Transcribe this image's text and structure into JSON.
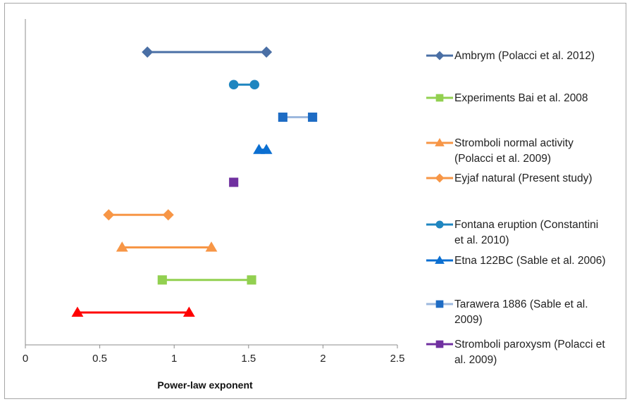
{
  "chart_data": {
    "type": "range",
    "xlabel": "Power-law exponent",
    "ylabel": "",
    "xlim": [
      0,
      2.5
    ],
    "x_ticks": [
      "0",
      "0.5",
      "1",
      "1.5",
      "2",
      "2.5"
    ],
    "grid": false,
    "legend_position": "right",
    "series": [
      {
        "name": "Ambrym (Polacci et al. 2012)",
        "legend_lines": [
          "Ambrym (Polacci et al. 2012)"
        ],
        "marker": "diamond",
        "color": "#4a6fa5",
        "range": [
          0.82,
          1.62
        ]
      },
      {
        "name": "Fontana eruption (Constantini et al. 2010)",
        "legend_lines": [
          "Fontana eruption (Constantini",
          "et al. 2010)"
        ],
        "marker": "circle",
        "color": "#1f86c0",
        "range": [
          1.4,
          1.54
        ]
      },
      {
        "name": "Tarawera 1886 (Sable et al. 2009)",
        "legend_lines": [
          "Tarawera 1886 (Sable et al.",
          "2009)"
        ],
        "marker": "square",
        "color": "#1e6cc4",
        "line_color": "#9db8de",
        "range": [
          1.73,
          1.93
        ]
      },
      {
        "name": "Etna 122BC (Sable et al. 2006)",
        "legend_lines": [
          "Etna 122BC (Sable et al. 2006)"
        ],
        "marker": "triangle",
        "color": "#0b6fd1",
        "range": [
          1.57,
          1.62
        ]
      },
      {
        "name": "Stromboli paroxysm (Polacci et al. 2009)",
        "legend_lines": [
          "Stromboli paroxysm (Polacci et",
          "al. 2009)"
        ],
        "marker": "square",
        "color": "#7030a0",
        "range": [
          1.4,
          1.4
        ]
      },
      {
        "name": "Eyjaf natural (Present study)",
        "legend_lines": [
          "Eyjaf natural (Present study)"
        ],
        "marker": "diamond",
        "color": "#f79646",
        "range": [
          0.56,
          0.96
        ]
      },
      {
        "name": "Stromboli normal activity (Polacci et al. 2009)",
        "legend_lines": [
          "Stromboli normal activity",
          "(Polacci et al. 2009)"
        ],
        "marker": "triangle",
        "color": "#f79646",
        "range": [
          0.65,
          1.25
        ]
      },
      {
        "name": "Experiments Bai et al. 2008",
        "legend_lines": [
          "Experiments Bai et al. 2008"
        ],
        "marker": "square",
        "color": "#92d050",
        "range": [
          0.92,
          1.52
        ]
      },
      {
        "name": "",
        "legend_lines": [],
        "marker": "triangle",
        "color": "#ff0000",
        "range": [
          0.35,
          1.1
        ]
      }
    ],
    "legend_order": [
      0,
      7,
      6,
      5,
      1,
      3,
      2,
      4
    ]
  }
}
